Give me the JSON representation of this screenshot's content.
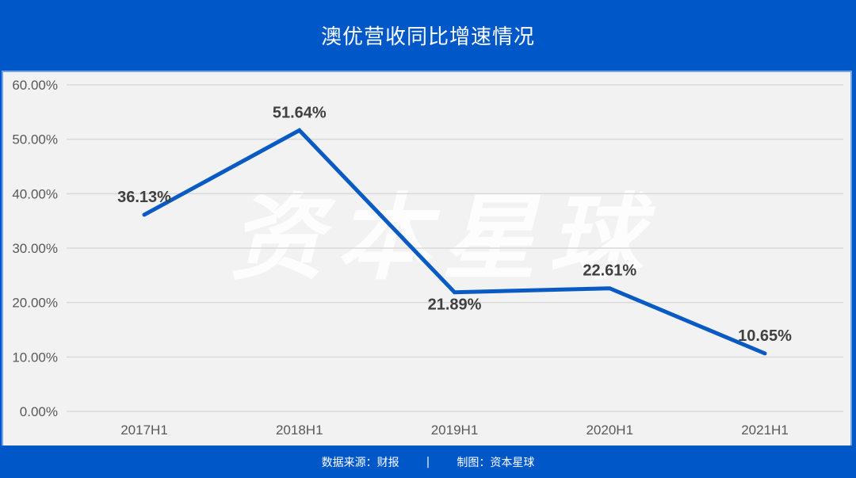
{
  "header": {
    "title": "澳优营收同比增速情况"
  },
  "watermark": "资本星球",
  "footer": {
    "source": "数据来源：财报",
    "separator": "|",
    "credit": "制图：资本星球"
  },
  "colors": {
    "brand_blue": "#0057c8",
    "line": "#0a5ac4",
    "panel_bg": "#f2f2f2",
    "grid": "#d9d9d9"
  },
  "chart_data": {
    "type": "line",
    "title": "澳优营收同比增速情况",
    "categories": [
      "2017H1",
      "2018H1",
      "2019H1",
      "2020H1",
      "2021H1"
    ],
    "series": [
      {
        "name": "营收同比增速",
        "values": [
          36.13,
          51.64,
          21.89,
          22.61,
          10.65
        ]
      }
    ],
    "data_labels": [
      "36.13%",
      "51.64%",
      "21.89%",
      "22.61%",
      "10.65%"
    ],
    "y_ticks": [
      "0.00%",
      "10.00%",
      "20.00%",
      "30.00%",
      "40.00%",
      "50.00%",
      "60.00%"
    ],
    "ylim": [
      0,
      60
    ],
    "xlabel": "",
    "ylabel": "",
    "grid": true,
    "legend": "none"
  }
}
